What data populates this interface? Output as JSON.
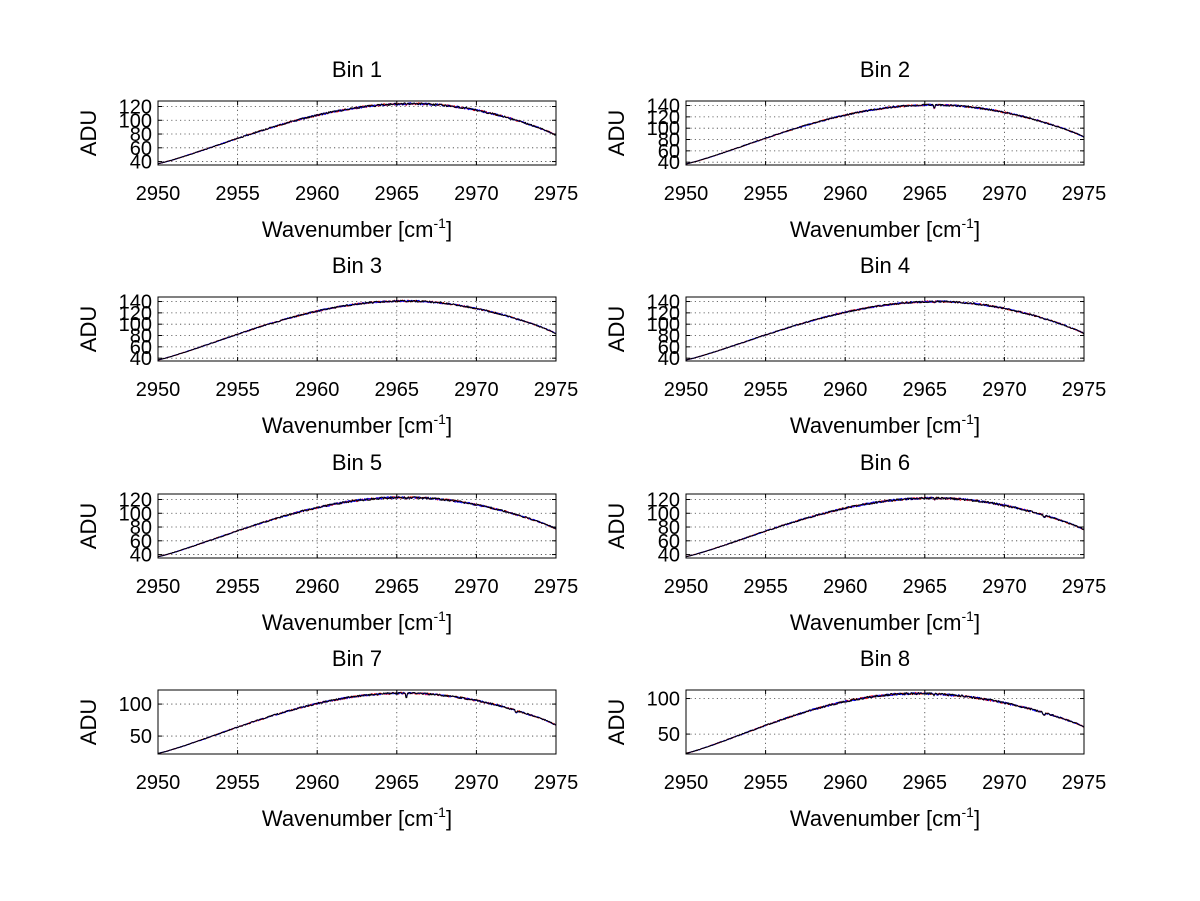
{
  "chart_data": [
    {
      "type": "line",
      "title": "Bin 1",
      "xlabel_main": "Wavenumber [cm",
      "xlabel_sup": "-1",
      "xlabel_end": "]",
      "ylabel": "ADU",
      "xlim": [
        2950,
        2975
      ],
      "xticks": [
        "2950",
        "2955",
        "2960",
        "2965",
        "2970",
        "2975"
      ],
      "ylim": [
        35,
        128
      ],
      "yticks": [
        "40",
        "60",
        "80",
        "100",
        "120"
      ],
      "profile": {
        "y_start": 37,
        "y_peak": 124,
        "y_end": 78,
        "peak_x": 2966
      },
      "series": [
        {
          "name": "spectrum-red",
          "color": "#ff0000"
        },
        {
          "name": "spectrum-blue",
          "color": "#0000ff"
        },
        {
          "name": "spectrum-black",
          "color": "#000000"
        }
      ]
    },
    {
      "type": "line",
      "title": "Bin 2",
      "xlabel_main": "Wavenumber [cm",
      "xlabel_sup": "-1",
      "xlabel_end": "]",
      "ylabel": "ADU",
      "xlim": [
        2950,
        2975
      ],
      "xticks": [
        "2950",
        "2955",
        "2960",
        "2965",
        "2970",
        "2975"
      ],
      "ylim": [
        35,
        148
      ],
      "yticks": [
        "40",
        "60",
        "80",
        "100",
        "120",
        "140"
      ],
      "profile": {
        "y_start": 37,
        "y_peak": 141,
        "y_end": 84,
        "peak_x": 2965.5
      },
      "series": [
        {
          "name": "spectrum-red",
          "color": "#ff0000"
        },
        {
          "name": "spectrum-blue",
          "color": "#0000ff"
        },
        {
          "name": "spectrum-black",
          "color": "#000000"
        }
      ]
    },
    {
      "type": "line",
      "title": "Bin 3",
      "xlabel_main": "Wavenumber [cm",
      "xlabel_sup": "-1",
      "xlabel_end": "]",
      "ylabel": "ADU",
      "xlim": [
        2950,
        2975
      ],
      "xticks": [
        "2950",
        "2955",
        "2960",
        "2965",
        "2970",
        "2975"
      ],
      "ylim": [
        35,
        148
      ],
      "yticks": [
        "40",
        "60",
        "80",
        "100",
        "120",
        "140"
      ],
      "profile": {
        "y_start": 37,
        "y_peak": 141,
        "y_end": 83,
        "peak_x": 2965.5
      },
      "series": [
        {
          "name": "spectrum-red",
          "color": "#ff0000"
        },
        {
          "name": "spectrum-blue",
          "color": "#0000ff"
        },
        {
          "name": "spectrum-black",
          "color": "#000000"
        }
      ]
    },
    {
      "type": "line",
      "title": "Bin 4",
      "xlabel_main": "Wavenumber [cm",
      "xlabel_sup": "-1",
      "xlabel_end": "]",
      "ylabel": "ADU",
      "xlim": [
        2950,
        2975
      ],
      "xticks": [
        "2950",
        "2955",
        "2960",
        "2965",
        "2970",
        "2975"
      ],
      "ylim": [
        35,
        148
      ],
      "yticks": [
        "40",
        "60",
        "80",
        "100",
        "120",
        "140"
      ],
      "profile": {
        "y_start": 37,
        "y_peak": 140,
        "y_end": 83,
        "peak_x": 2965.8
      },
      "series": [
        {
          "name": "spectrum-red",
          "color": "#ff0000"
        },
        {
          "name": "spectrum-blue",
          "color": "#0000ff"
        },
        {
          "name": "spectrum-black",
          "color": "#000000"
        }
      ]
    },
    {
      "type": "line",
      "title": "Bin 5",
      "xlabel_main": "Wavenumber [cm",
      "xlabel_sup": "-1",
      "xlabel_end": "]",
      "ylabel": "ADU",
      "xlim": [
        2950,
        2975
      ],
      "xticks": [
        "2950",
        "2955",
        "2960",
        "2965",
        "2970",
        "2975"
      ],
      "ylim": [
        35,
        128
      ],
      "yticks": [
        "40",
        "60",
        "80",
        "100",
        "120"
      ],
      "profile": {
        "y_start": 37,
        "y_peak": 123,
        "y_end": 77,
        "peak_x": 2965.5
      },
      "series": [
        {
          "name": "spectrum-red",
          "color": "#ff0000"
        },
        {
          "name": "spectrum-blue",
          "color": "#0000ff"
        },
        {
          "name": "spectrum-black",
          "color": "#000000"
        }
      ]
    },
    {
      "type": "line",
      "title": "Bin 6",
      "xlabel_main": "Wavenumber [cm",
      "xlabel_sup": "-1",
      "xlabel_end": "]",
      "ylabel": "ADU",
      "xlim": [
        2950,
        2975
      ],
      "xticks": [
        "2950",
        "2955",
        "2960",
        "2965",
        "2970",
        "2975"
      ],
      "ylim": [
        35,
        128
      ],
      "yticks": [
        "40",
        "60",
        "80",
        "100",
        "120"
      ],
      "profile": {
        "y_start": 37,
        "y_peak": 122,
        "y_end": 76,
        "peak_x": 2965.5
      },
      "series": [
        {
          "name": "spectrum-red",
          "color": "#ff0000"
        },
        {
          "name": "spectrum-blue",
          "color": "#0000ff"
        },
        {
          "name": "spectrum-black",
          "color": "#000000"
        }
      ]
    },
    {
      "type": "line",
      "title": "Bin 7",
      "xlabel_main": "Wavenumber [cm",
      "xlabel_sup": "-1",
      "xlabel_end": "]",
      "ylabel": "ADU",
      "xlim": [
        2950,
        2975
      ],
      "xticks": [
        "2950",
        "2955",
        "2960",
        "2965",
        "2970",
        "2975"
      ],
      "ylim": [
        22,
        122
      ],
      "yticks": [
        "50",
        "100"
      ],
      "profile": {
        "y_start": 23,
        "y_peak": 117,
        "y_end": 67,
        "peak_x": 2965.5
      },
      "series": [
        {
          "name": "spectrum-red",
          "color": "#ff0000"
        },
        {
          "name": "spectrum-blue",
          "color": "#0000ff"
        },
        {
          "name": "spectrum-black",
          "color": "#000000"
        }
      ]
    },
    {
      "type": "line",
      "title": "Bin 8",
      "xlabel_main": "Wavenumber [cm",
      "xlabel_sup": "-1",
      "xlabel_end": "]",
      "ylabel": "ADU",
      "xlim": [
        2950,
        2975
      ],
      "xticks": [
        "2950",
        "2955",
        "2960",
        "2965",
        "2970",
        "2975"
      ],
      "ylim": [
        22,
        112
      ],
      "yticks": [
        "50",
        "100"
      ],
      "profile": {
        "y_start": 23,
        "y_peak": 107,
        "y_end": 60,
        "peak_x": 2964.5
      },
      "series": [
        {
          "name": "spectrum-red",
          "color": "#ff0000"
        },
        {
          "name": "spectrum-blue",
          "color": "#0000ff"
        },
        {
          "name": "spectrum-black",
          "color": "#000000"
        }
      ]
    }
  ]
}
